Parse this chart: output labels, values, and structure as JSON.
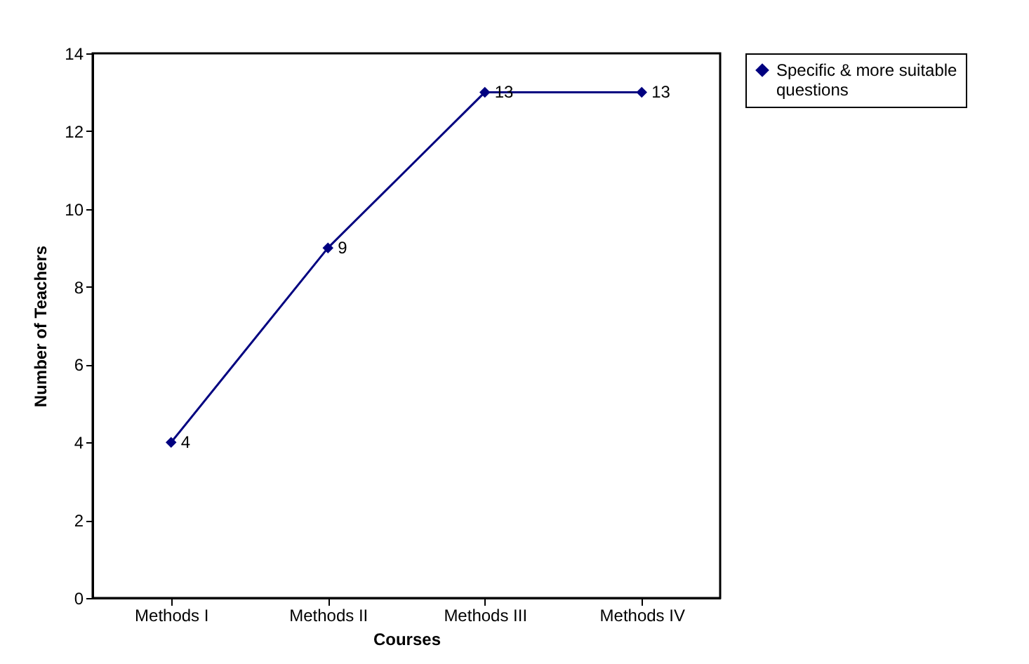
{
  "chart_data": {
    "type": "line",
    "xlabel": "Courses",
    "ylabel": "Number of Teachers",
    "categories": [
      "Methods I",
      "Methods II",
      "Methods III",
      "Methods IV"
    ],
    "series": [
      {
        "name": "Specific & more suitable questions",
        "color": "#000080",
        "values": [
          4,
          9,
          13,
          13
        ]
      }
    ],
    "ylim": [
      0,
      14
    ],
    "yticks": [
      0,
      2,
      4,
      6,
      8,
      10,
      12,
      14
    ],
    "grid": false,
    "legend": "right",
    "marker": "diamond",
    "line_style": "solid",
    "data_labels": true
  }
}
